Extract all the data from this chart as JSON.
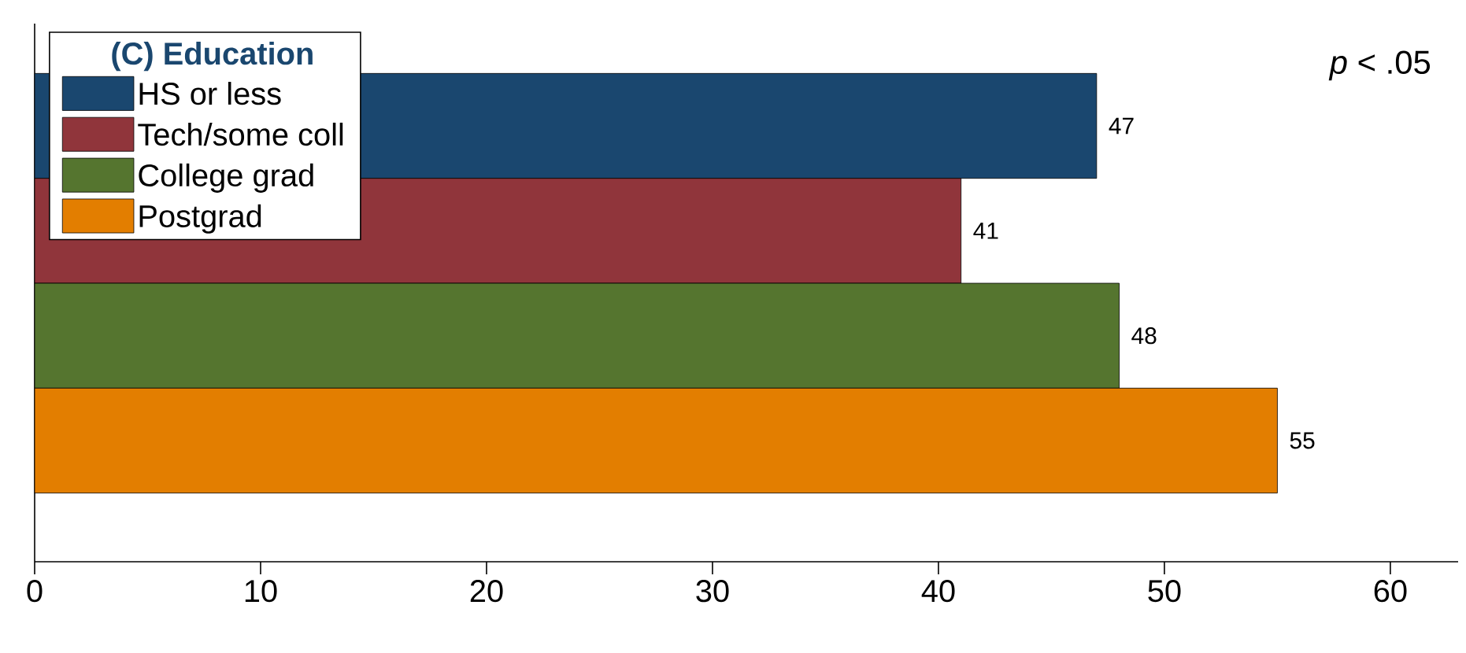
{
  "chart_data": {
    "type": "bar",
    "orientation": "horizontal",
    "legend_title": "(C)  Education",
    "categories": [
      null
    ],
    "series": [
      {
        "name": "HS or less",
        "color": "#1a476f",
        "values": [
          47
        ]
      },
      {
        "name": "Tech/some coll",
        "color": "#90353b",
        "values": [
          41
        ]
      },
      {
        "name": "College grad",
        "color": "#55752f",
        "values": [
          48
        ]
      },
      {
        "name": "Postgrad",
        "color": "#e37e00",
        "values": [
          55
        ]
      }
    ],
    "xlim": [
      0,
      63
    ],
    "xticks": [
      0,
      10,
      20,
      30,
      40,
      50,
      60
    ],
    "data_labels": true,
    "legend": "top left",
    "grid": false,
    "annotations": [
      "*p* < .05"
    ]
  }
}
